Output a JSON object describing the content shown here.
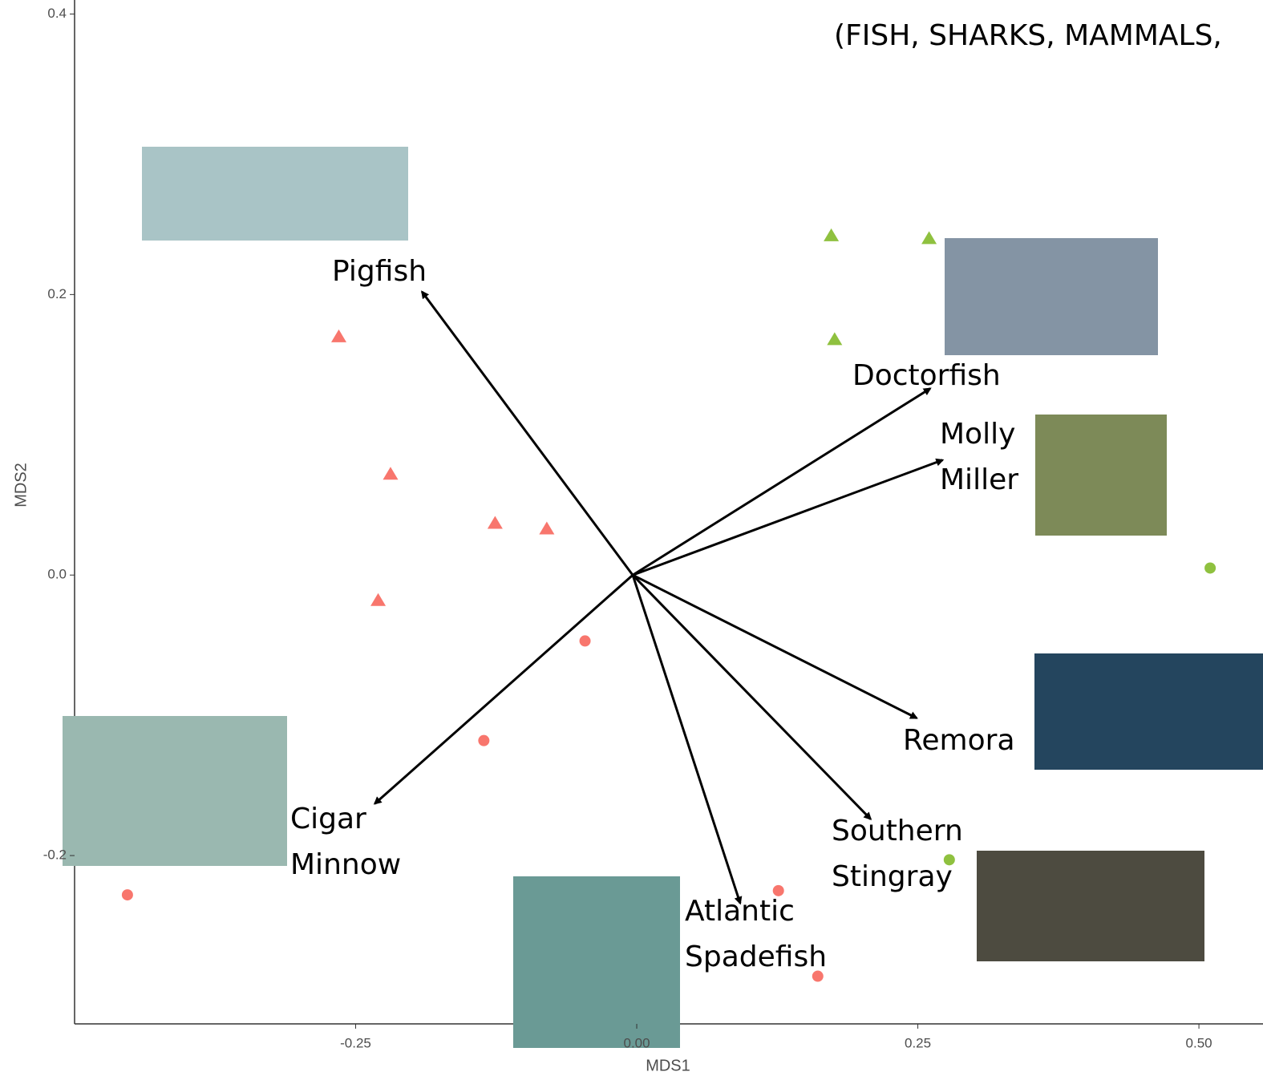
{
  "chart_data": {
    "type": "ordination",
    "annotation": "(FISH, SHARKS, MAMMALS,",
    "x_label": "MDS1",
    "y_label": "MDS2",
    "xlim": [
      -0.5,
      0.557
    ],
    "ylim": [
      -0.32,
      0.41
    ],
    "xticks": [
      -0.25,
      {
        "value": 0,
        "label": "0.00"
      },
      0.25,
      {
        "value": 0.5,
        "label": "0.50"
      }
    ],
    "yticks": [
      0.4,
      0.2,
      {
        "value": 0,
        "label": "0.0"
      },
      -0.2
    ],
    "series": [
      {
        "color": "#f8766d",
        "marker": "triangle",
        "x": [
          -0.265,
          -0.219,
          -0.126,
          -0.08,
          -0.23
        ],
        "y": [
          0.17,
          0.072,
          0.037,
          0.033,
          -0.018
        ]
      },
      {
        "color": "#f8766d",
        "marker": "circle",
        "x": [
          -0.046,
          -0.136,
          -0.453,
          0.126,
          0.161
        ],
        "y": [
          -0.047,
          -0.118,
          -0.228,
          -0.225,
          -0.286
        ]
      },
      {
        "color": "#8fc13f",
        "marker": "triangle",
        "x": [
          0.173,
          0.26,
          0.176
        ],
        "y": [
          0.242,
          0.24,
          0.168
        ]
      },
      {
        "color": "#8fc13f",
        "marker": "circle",
        "x": [
          0.51,
          0.278
        ],
        "y": [
          0.005,
          -0.203
        ]
      }
    ],
    "vectors": [
      {
        "label": "Pigfish",
        "x": -0.191,
        "y": 0.202
      },
      {
        "label": "Doctorfish",
        "x": 0.261,
        "y": 0.133
      },
      {
        "label": "Molly Miller",
        "x": 0.272,
        "y": 0.082
      },
      {
        "label": "Remora",
        "x": 0.249,
        "y": -0.102
      },
      {
        "label": "Southern Stingray",
        "x": 0.208,
        "y": -0.174
      },
      {
        "label": "Atlantic Spadefish",
        "x": 0.092,
        "y": -0.234
      },
      {
        "label": "Cigar Minnow",
        "x": -0.233,
        "y": -0.163
      }
    ]
  }
}
